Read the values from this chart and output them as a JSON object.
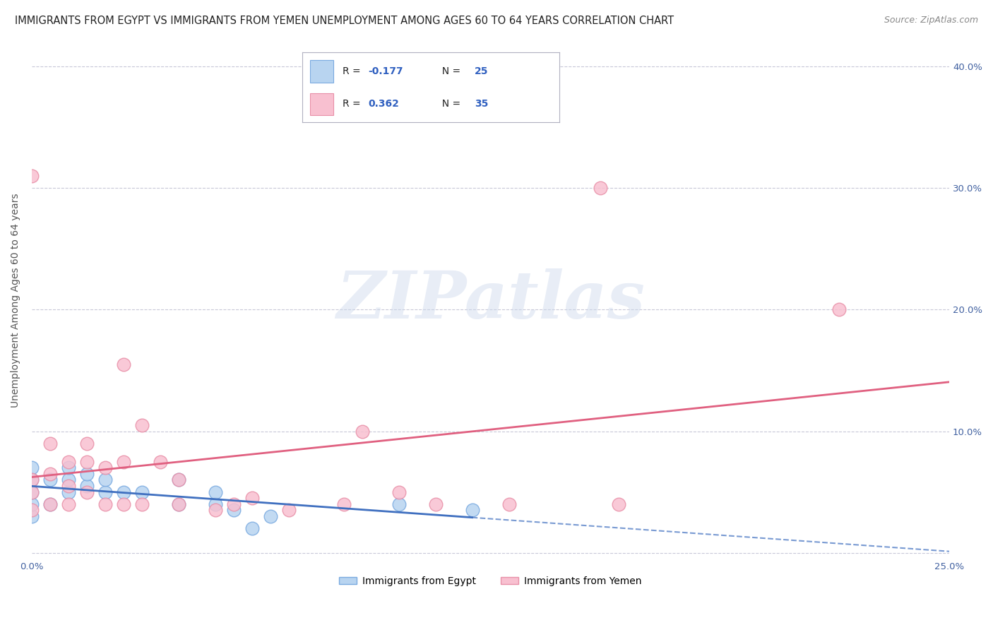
{
  "title": "IMMIGRANTS FROM EGYPT VS IMMIGRANTS FROM YEMEN UNEMPLOYMENT AMONG AGES 60 TO 64 YEARS CORRELATION CHART",
  "source": "Source: ZipAtlas.com",
  "ylabel": "Unemployment Among Ages 60 to 64 years",
  "xlim": [
    0.0,
    0.25
  ],
  "ylim": [
    -0.005,
    0.42
  ],
  "xticks": [
    0.0,
    0.05,
    0.1,
    0.15,
    0.2,
    0.25
  ],
  "xticklabels_bottom": [
    "0.0%",
    "",
    "",
    "",
    "",
    "25.0%"
  ],
  "yticks": [
    0.0,
    0.1,
    0.2,
    0.3,
    0.4
  ],
  "yticklabels_right": [
    "",
    "10.0%",
    "20.0%",
    "30.0%",
    "40.0%"
  ],
  "background_color": "#ffffff",
  "watermark": "ZIPatlas",
  "egypt_color": "#b8d4f0",
  "egypt_edge_color": "#7aaae0",
  "yemen_color": "#f8c0d0",
  "yemen_edge_color": "#e890a8",
  "egypt_line_color": "#4070c0",
  "yemen_line_color": "#e06080",
  "legend_egypt_label": "Immigrants from Egypt",
  "legend_yemen_label": "Immigrants from Yemen",
  "egypt_R": -0.177,
  "egypt_N": 25,
  "yemen_R": 0.362,
  "yemen_N": 35,
  "egypt_x": [
    0.0,
    0.0,
    0.0,
    0.0,
    0.0,
    0.005,
    0.005,
    0.01,
    0.01,
    0.01,
    0.015,
    0.015,
    0.02,
    0.02,
    0.025,
    0.03,
    0.04,
    0.04,
    0.05,
    0.05,
    0.055,
    0.06,
    0.065,
    0.1,
    0.12
  ],
  "egypt_y": [
    0.03,
    0.04,
    0.05,
    0.06,
    0.07,
    0.04,
    0.06,
    0.05,
    0.06,
    0.07,
    0.055,
    0.065,
    0.05,
    0.06,
    0.05,
    0.05,
    0.04,
    0.06,
    0.04,
    0.05,
    0.035,
    0.02,
    0.03,
    0.04,
    0.035
  ],
  "yemen_x": [
    0.0,
    0.0,
    0.0,
    0.0,
    0.005,
    0.005,
    0.005,
    0.01,
    0.01,
    0.01,
    0.015,
    0.015,
    0.015,
    0.02,
    0.02,
    0.025,
    0.025,
    0.025,
    0.03,
    0.03,
    0.035,
    0.04,
    0.04,
    0.05,
    0.055,
    0.06,
    0.07,
    0.085,
    0.09,
    0.1,
    0.11,
    0.13,
    0.155,
    0.16,
    0.22
  ],
  "yemen_y": [
    0.035,
    0.05,
    0.06,
    0.31,
    0.04,
    0.065,
    0.09,
    0.04,
    0.055,
    0.075,
    0.05,
    0.075,
    0.09,
    0.04,
    0.07,
    0.04,
    0.075,
    0.155,
    0.04,
    0.105,
    0.075,
    0.04,
    0.06,
    0.035,
    0.04,
    0.045,
    0.035,
    0.04,
    0.1,
    0.05,
    0.04,
    0.04,
    0.3,
    0.04,
    0.2
  ],
  "grid_color": "#c8c8d8",
  "title_fontsize": 10.5,
  "axis_fontsize": 10,
  "tick_fontsize": 9.5,
  "legend_fontsize": 10,
  "source_fontsize": 9
}
